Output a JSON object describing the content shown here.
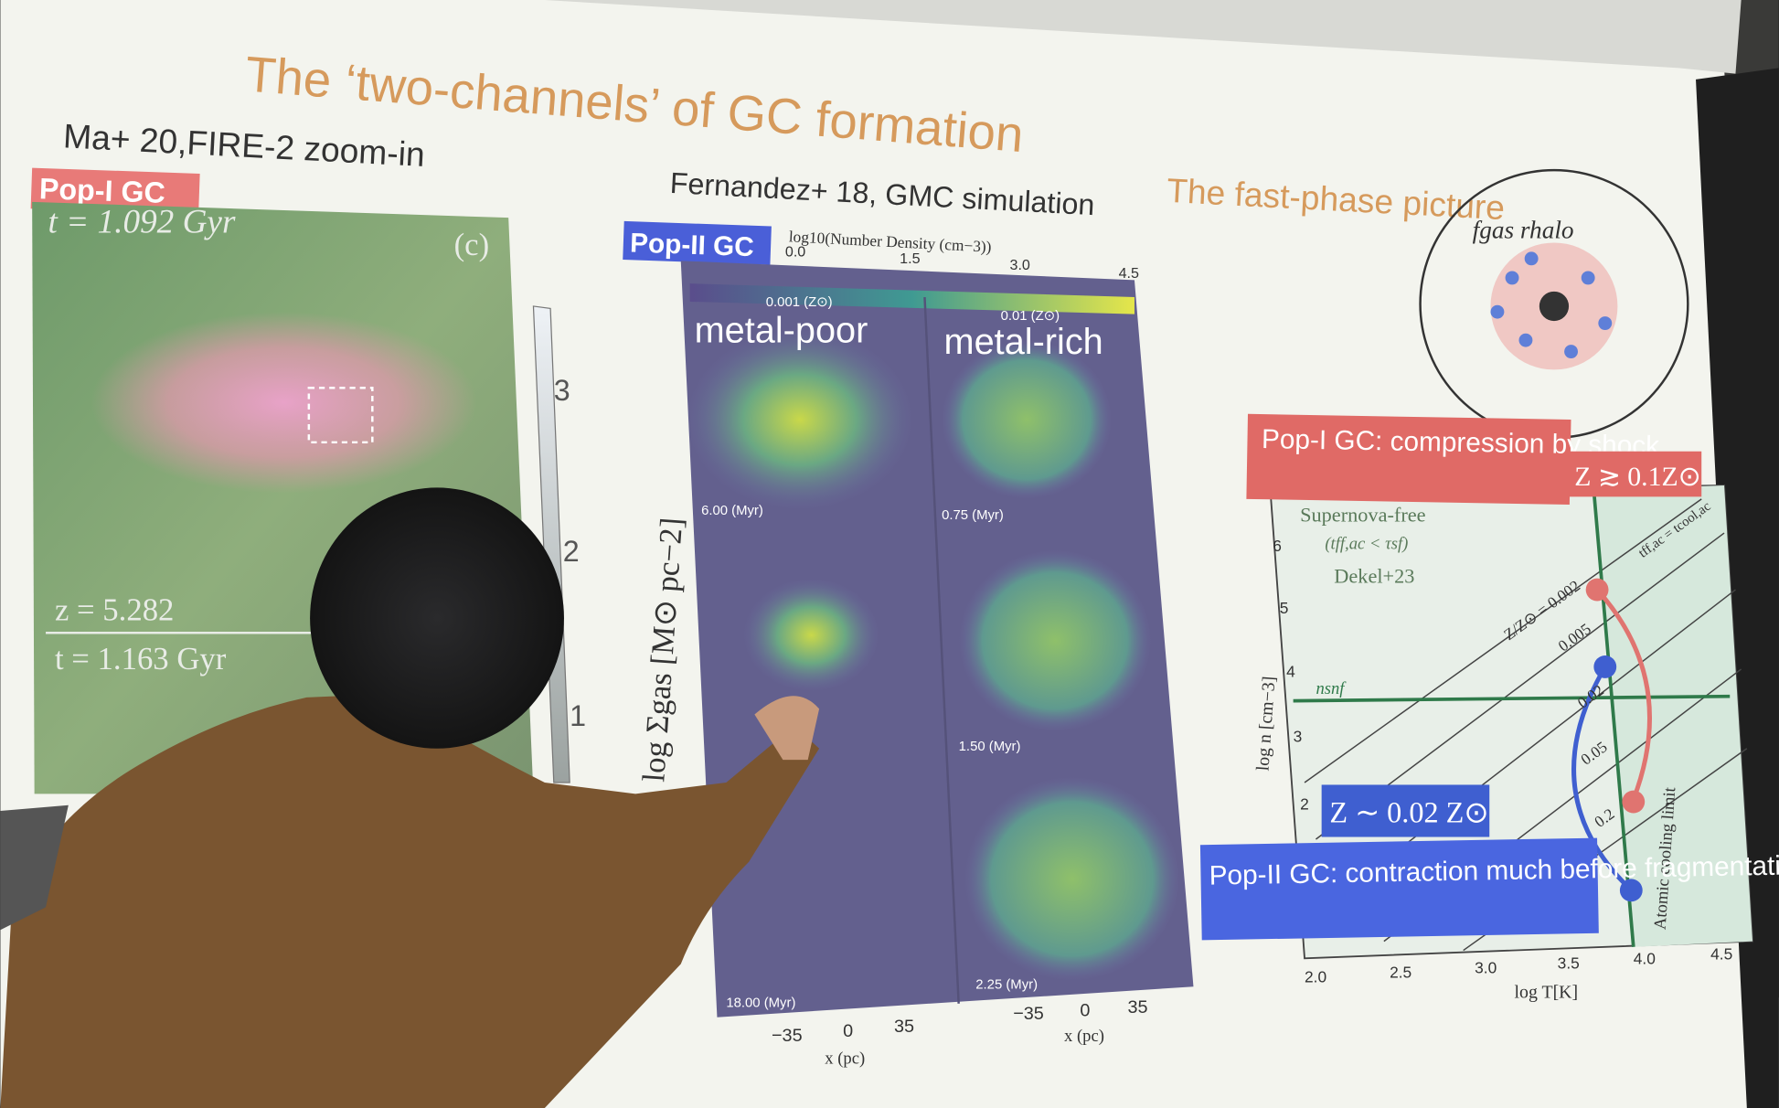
{
  "slide": {
    "title": "The ‘two-channels’ of GC formation",
    "left": {
      "heading": "Ma+ 20,FIRE-2 zoom-in",
      "tag": "Pop-I GC",
      "time_top": "t = 1.092 Gyr",
      "panel": "(c)",
      "redshift": "z = 5.282",
      "time_bottom": "t = 1.163 Gyr",
      "colorbar_ticks": [
        "3",
        "2",
        "1"
      ],
      "colorbar_label": "log Σgas [M⊙ pc−2]"
    },
    "middle": {
      "heading": "Fernandez+ 18, GMC simulation",
      "tag": "Pop-II GC",
      "colorbar_label": "log10(Number Density (cm−3))",
      "colorbar_ticks": [
        "0.0",
        "1.5",
        "3.0",
        "4.5"
      ],
      "columns": [
        {
          "label": "metal-poor",
          "metallicity": "0.001 (Z⊙)",
          "times": [
            "6.00 (Myr)",
            "18.00 (Myr)"
          ]
        },
        {
          "label": "metal-rich",
          "metallicity": "0.01 (Z⊙)",
          "times": [
            "0.75 (Myr)",
            "1.50 (Myr)",
            "2.25 (Myr)"
          ]
        }
      ],
      "x_ticks": [
        "−35",
        "0",
        "35"
      ],
      "x_label": "x (pc)"
    },
    "right": {
      "heading": "The fast-phase picture",
      "halo_label": "fgas rhalo",
      "pop1": "Pop-I GC: compression by shock",
      "pop1_z": "Z ≳ 0.1Z⊙",
      "region": "Supernova-free",
      "region_cond": "(tff,ac < τsf)",
      "ref": "Dekel+23",
      "nsnf": "nsnf",
      "tracks": [
        "Z/Z⊙ = 0.002",
        "0.005",
        "0.02",
        "0.05",
        "0.2"
      ],
      "equality": "tff,ac = tcool,ac",
      "cooling_limit": "Atomic cooling limit",
      "pop2_z": "Z ∼ 0.02 Z⊙",
      "pop2": "Pop-II GC: contraction much before fragmentation",
      "y_ticks": [
        "2",
        "3",
        "4",
        "5",
        "6"
      ],
      "y_label": "log n [cm−3]",
      "x_ticks": [
        "2.0",
        "2.5",
        "3.0",
        "3.5",
        "4.0",
        "4.5"
      ],
      "x_label": "log T[K]"
    }
  }
}
